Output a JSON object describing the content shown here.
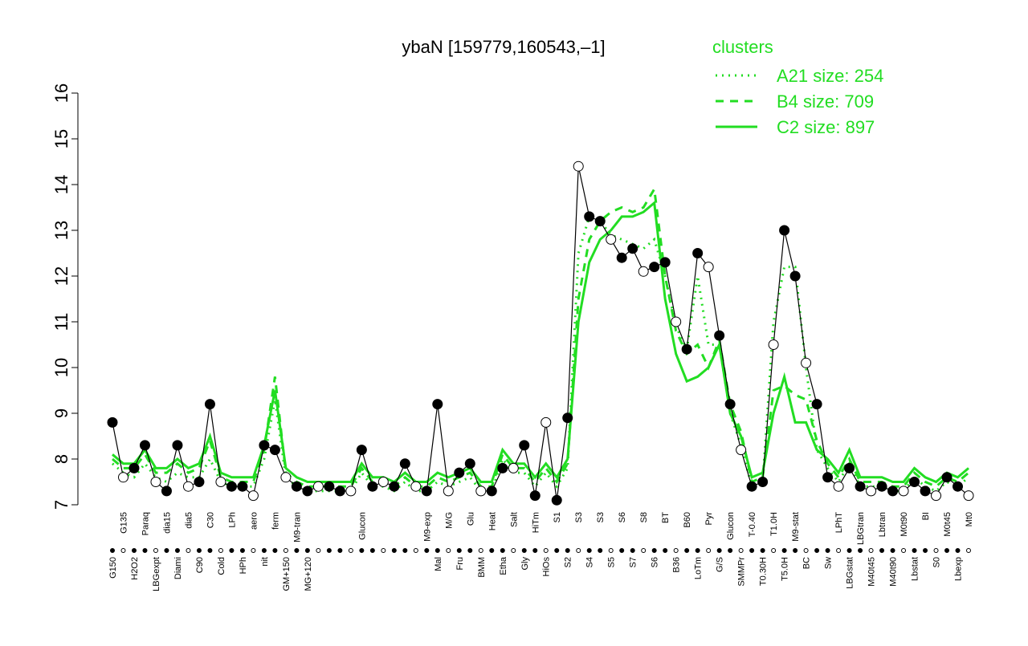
{
  "chart_data": {
    "type": "line",
    "title": "ybaN [159779,160543,–1]",
    "categories": [
      "G150",
      "G135",
      "H2O2",
      "Paraq",
      "LBGexpt",
      "dia15",
      "Diami",
      "dia5",
      "C90",
      "C30",
      "Cold",
      "LPh",
      "HPh",
      "aero",
      "nit",
      "ferm",
      "GM+150",
      "M9-tran",
      "MG+120",
      null,
      null,
      null,
      null,
      "Glucon",
      null,
      null,
      null,
      null,
      null,
      "M9-exp",
      "Mal",
      "M/G",
      "Fru",
      "Glu",
      "BMM",
      "Heat",
      "Etha",
      "Salt",
      "Gly",
      "HiTm",
      "HiOs",
      "S1",
      "S2",
      "S3",
      "S4",
      "S3",
      "S5",
      "S6",
      "S7",
      "S8",
      "S6",
      "BT",
      "B36",
      "B60",
      "LoTm",
      "Pyr",
      "G/S",
      "Glucon",
      "SMMPr",
      "T-0.40",
      "T0.30H",
      "T1.0H",
      "T5.0H",
      "M9-stat",
      "BC",
      null,
      "Sw",
      "LPhT",
      "LBGstat",
      "LBGtran",
      "M40t45",
      "Lbtran",
      "M40t90",
      "M0t90",
      "Lbstat",
      "BI",
      "S0",
      "M0t45",
      "Lbexp",
      "Mt0"
    ],
    "series": [
      {
        "name": null,
        "color": "#000000",
        "linestyle": "solid",
        "markers": true,
        "values": [
          8.8,
          7.6,
          7.8,
          8.3,
          7.5,
          7.3,
          8.3,
          7.4,
          7.5,
          9.2,
          7.5,
          7.4,
          7.4,
          7.2,
          8.3,
          8.2,
          7.6,
          7.4,
          7.3,
          7.4,
          7.4,
          7.3,
          7.3,
          8.2,
          7.4,
          7.5,
          7.4,
          7.9,
          7.4,
          7.3,
          9.2,
          7.3,
          7.7,
          7.9,
          7.3,
          7.3,
          7.8,
          7.8,
          8.3,
          7.2,
          8.8,
          7.1,
          8.9,
          14.4,
          13.3,
          13.2,
          12.8,
          12.4,
          12.6,
          12.1,
          12.2,
          12.3,
          11.0,
          10.4,
          12.5,
          12.2,
          10.7,
          9.2,
          8.2,
          7.4,
          7.5,
          10.5,
          13.0,
          12.0,
          10.1,
          9.2,
          7.6,
          7.4,
          7.8,
          7.4,
          7.3,
          7.4,
          7.3,
          7.3,
          7.5,
          7.3,
          7.2,
          7.6,
          7.4,
          7.2
        ]
      },
      {
        "name": "A21 size: 254",
        "color": "#22dd22",
        "linestyle": "dotted",
        "values": [
          7.9,
          7.7,
          7.6,
          7.9,
          7.6,
          7.5,
          7.7,
          7.6,
          7.6,
          8.0,
          7.5,
          7.4,
          7.4,
          7.4,
          8.0,
          9.3,
          7.6,
          7.4,
          7.3,
          7.3,
          7.3,
          7.3,
          7.3,
          7.7,
          7.4,
          7.4,
          7.3,
          7.5,
          7.3,
          7.3,
          7.5,
          7.4,
          7.5,
          7.6,
          7.3,
          7.3,
          8.0,
          7.7,
          7.7,
          7.4,
          7.7,
          7.4,
          7.8,
          12.5,
          13.3,
          13.2,
          12.9,
          12.8,
          12.7,
          12.6,
          12.8,
          12.0,
          10.9,
          10.4,
          12.0,
          10.5,
          10.5,
          9.0,
          8.3,
          7.4,
          7.5,
          11.0,
          12.2,
          12.2,
          10.0,
          8.2,
          7.8,
          7.5,
          7.9,
          7.4,
          7.4,
          7.4,
          7.3,
          7.3,
          7.6,
          7.4,
          7.3,
          7.5,
          7.4,
          7.6
        ]
      },
      {
        "name": "B4 size: 709",
        "color": "#22dd22",
        "linestyle": "dashed",
        "values": [
          8.0,
          7.8,
          7.8,
          8.1,
          7.7,
          7.7,
          7.9,
          7.7,
          7.8,
          8.4,
          7.6,
          7.5,
          7.5,
          7.5,
          8.2,
          9.8,
          7.7,
          7.5,
          7.4,
          7.4,
          7.4,
          7.4,
          7.4,
          7.8,
          7.5,
          7.5,
          7.4,
          7.6,
          7.4,
          7.4,
          7.6,
          7.5,
          7.6,
          7.7,
          7.4,
          7.4,
          8.1,
          7.8,
          7.8,
          7.5,
          7.8,
          7.5,
          7.9,
          11.5,
          12.8,
          13.2,
          13.4,
          13.5,
          13.4,
          13.5,
          13.9,
          12.0,
          10.8,
          10.3,
          10.5,
          10.0,
          10.6,
          9.2,
          8.6,
          7.5,
          7.6,
          9.5,
          9.6,
          9.4,
          9.3,
          8.4,
          7.9,
          7.6,
          8.0,
          7.5,
          7.5,
          7.5,
          7.4,
          7.4,
          7.7,
          7.5,
          7.4,
          7.6,
          7.5,
          7.7
        ]
      },
      {
        "name": "C2 size: 897",
        "color": "#22dd22",
        "linestyle": "solid",
        "values": [
          8.1,
          7.9,
          7.9,
          8.2,
          7.8,
          7.8,
          8.0,
          7.8,
          7.9,
          8.5,
          7.7,
          7.6,
          7.6,
          7.6,
          8.3,
          9.5,
          7.8,
          7.6,
          7.5,
          7.5,
          7.5,
          7.5,
          7.5,
          7.9,
          7.6,
          7.6,
          7.5,
          7.7,
          7.5,
          7.5,
          7.7,
          7.6,
          7.7,
          7.8,
          7.5,
          7.5,
          8.2,
          7.9,
          7.9,
          7.6,
          7.9,
          7.6,
          8.0,
          11.0,
          12.3,
          12.8,
          13.0,
          13.3,
          13.3,
          13.4,
          13.6,
          11.5,
          10.3,
          9.7,
          9.8,
          10.0,
          10.5,
          9.0,
          8.5,
          7.6,
          7.7,
          9.0,
          9.8,
          8.8,
          8.8,
          8.2,
          8.0,
          7.7,
          8.2,
          7.6,
          7.6,
          7.6,
          7.5,
          7.5,
          7.8,
          7.6,
          7.5,
          7.7,
          7.6,
          7.8
        ]
      }
    ],
    "legend_title": "clusters",
    "ylim": [
      7,
      16
    ],
    "yticks": [
      7,
      8,
      9,
      10,
      11,
      12,
      13,
      14,
      15,
      16
    ]
  }
}
